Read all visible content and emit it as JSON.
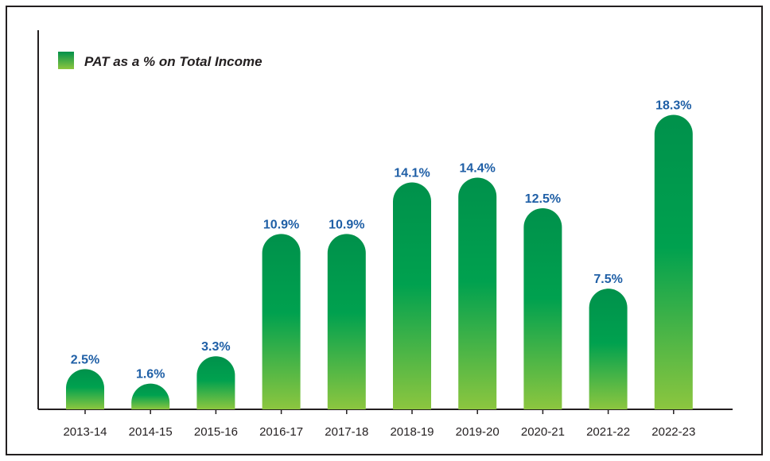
{
  "chart_data": {
    "type": "bar",
    "legend": "PAT as a % on Total Income",
    "legend_position": "top-left",
    "categories": [
      "2013-14",
      "2014-15",
      "2015-16",
      "2016-17",
      "2017-18",
      "2018-19",
      "2019-20",
      "2020-21",
      "2021-22",
      "2022-23"
    ],
    "values": [
      2.5,
      1.6,
      3.3,
      10.9,
      10.9,
      14.1,
      14.4,
      12.5,
      7.5,
      18.3
    ],
    "value_labels": [
      "2.5%",
      "1.6%",
      "3.3%",
      "10.9%",
      "10.9%",
      "14.1%",
      "14.4%",
      "12.5%",
      "7.5%",
      "18.3%"
    ],
    "ylim": [
      0,
      20.5
    ],
    "grid": false,
    "colors": {
      "bar_top": "#00914b",
      "bar_mid": "#00a14f",
      "bar_bottom": "#8cc63f",
      "value_label": "#1f5fa6",
      "axis": "#231f20"
    }
  }
}
